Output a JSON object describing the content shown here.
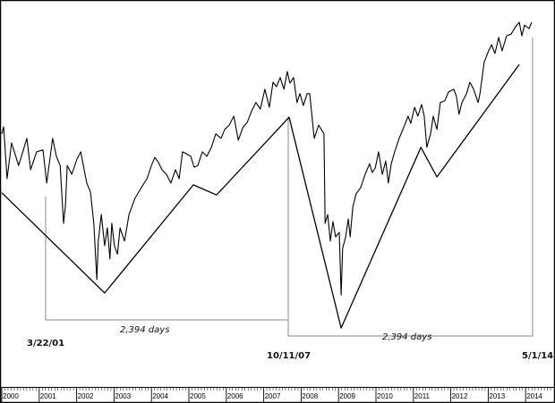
{
  "chart_data": {
    "type": "line",
    "title": "",
    "xlabel": "",
    "ylabel": "",
    "y_scale": "log",
    "grid": false,
    "legend": "none",
    "x_tick_labels": [
      "2000",
      "2001",
      "2002",
      "2003",
      "2004",
      "2005",
      "2006",
      "2007",
      "2008",
      "2009",
      "2010",
      "2011",
      "2012",
      "2013",
      "2014"
    ],
    "xlim": [
      2000,
      2014.4
    ],
    "series": [
      {
        "role": "price",
        "color": "#000000",
        "x": [
          2000.0,
          2000.05,
          2000.14,
          2000.26,
          2000.45,
          2000.67,
          2000.77,
          2000.93,
          2001.1,
          2001.2,
          2001.36,
          2001.46,
          2001.56,
          2001.65,
          2001.7,
          2001.75,
          2001.87,
          2002.01,
          2002.11,
          2002.2,
          2002.27,
          2002.37,
          2002.46,
          2002.54,
          2002.58,
          2002.66,
          2002.75,
          2002.82,
          2002.89,
          2002.94,
          2003.01,
          2003.09,
          2003.16,
          2003.28,
          2003.4,
          2003.56,
          2003.73,
          2003.88,
          2004.0,
          2004.09,
          2004.19,
          2004.28,
          2004.4,
          2004.52,
          2004.64,
          2004.74,
          2004.83,
          2004.93,
          2005.05,
          2005.14,
          2005.24,
          2005.36,
          2005.48,
          2005.6,
          2005.72,
          2005.86,
          2005.96,
          2006.08,
          2006.2,
          2006.32,
          2006.44,
          2006.56,
          2006.67,
          2006.79,
          2006.91,
          2007.03,
          2007.15,
          2007.25,
          2007.34,
          2007.44,
          2007.54,
          2007.63,
          2007.7,
          2007.8,
          2007.89,
          2007.97,
          2008.06,
          2008.16,
          2008.23,
          2008.35,
          2008.47,
          2008.61,
          2008.64,
          2008.71,
          2008.78,
          2008.85,
          2008.92,
          2009.02,
          2009.07,
          2009.11,
          2009.19,
          2009.26,
          2009.31,
          2009.38,
          2009.47,
          2009.59,
          2009.71,
          2009.83,
          2009.9,
          2009.98,
          2010.07,
          2010.17,
          2010.26,
          2010.33,
          2010.41,
          2010.5,
          2010.62,
          2010.74,
          2010.86,
          2010.93,
          2011.03,
          2011.12,
          2011.22,
          2011.29,
          2011.36,
          2011.46,
          2011.53,
          2011.63,
          2011.72,
          2011.84,
          2011.94,
          2012.08,
          2012.15,
          2012.22,
          2012.3,
          2012.42,
          2012.51,
          2012.61,
          2012.73,
          2012.78,
          2012.89,
          2013.01,
          2013.09,
          2013.18,
          2013.28,
          2013.37,
          2013.49,
          2013.61,
          2013.73,
          2013.83,
          2013.9,
          2013.97,
          2014.09,
          2014.16
        ],
        "y": [
          1241,
          1273,
          1055,
          1201,
          1107,
          1221,
          1090,
          1163,
          1171,
          1039,
          1221,
          1144,
          1107,
          898,
          958,
          1107,
          1072,
          1133,
          1163,
          1090,
          1039,
          1005,
          898,
          733,
          842,
          927,
          828,
          883,
          790,
          898,
          828,
          803,
          883,
          842,
          927,
          983,
          1022,
          1055,
          1107,
          1140,
          1118,
          1090,
          1072,
          1039,
          1090,
          1055,
          1163,
          1155,
          1144,
          1100,
          1107,
          1163,
          1144,
          1182,
          1241,
          1221,
          1261,
          1281,
          1323,
          1213,
          1269,
          1294,
          1345,
          1390,
          1357,
          1458,
          1366,
          1496,
          1472,
          1521,
          1458,
          1555,
          1491,
          1521,
          1390,
          1435,
          1375,
          1435,
          1435,
          1221,
          1281,
          1241,
          898,
          927,
          842,
          904,
          855,
          869,
          693,
          820,
          855,
          912,
          855,
          952,
          999,
          1022,
          1072,
          1114,
          1079,
          1097,
          1163,
          1072,
          1125,
          1039,
          1114,
          1163,
          1221,
          1269,
          1323,
          1289,
          1366,
          1323,
          1380,
          1323,
          1182,
          1241,
          1323,
          1261,
          1390,
          1399,
          1444,
          1458,
          1421,
          1332,
          1390,
          1435,
          1496,
          1458,
          1390,
          1435,
          1607,
          1675,
          1713,
          1659,
          1758,
          1675,
          1769,
          1780,
          1827,
          1858,
          1769,
          1839,
          1816,
          1858
        ]
      },
      {
        "role": "trend-zigzag",
        "color": "#000000",
        "x": [
          2000.0,
          2002.75,
          2005.12,
          2005.74,
          2007.68,
          2009.07,
          2011.2,
          2011.63,
          2013.83
        ],
        "y": [
          1003,
          698,
          1032,
          995,
          1318,
          615,
          1182,
          1062,
          1595
        ]
      }
    ],
    "annotations": {
      "dates": [
        "3/22/01",
        "10/11/07",
        "5/1/14"
      ],
      "spans": [
        "2,394 days",
        "2,394 days"
      ],
      "line_color": "#a0a0a0"
    }
  }
}
